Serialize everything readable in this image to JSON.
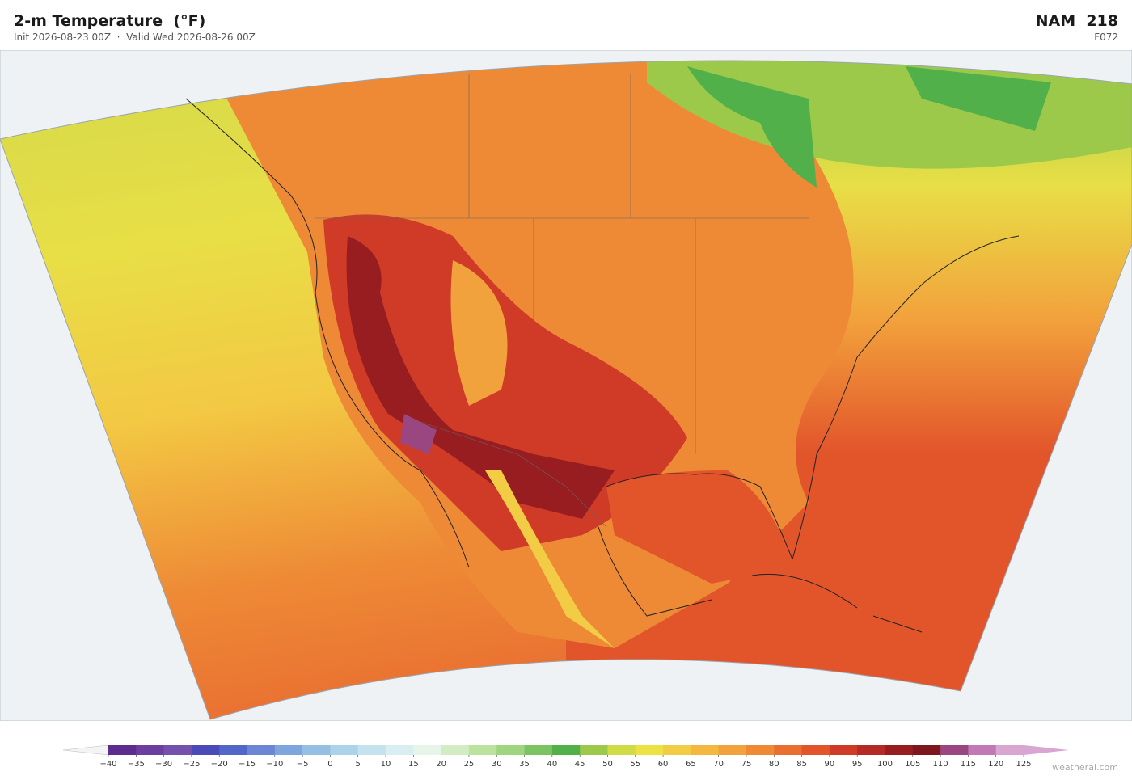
{
  "header": {
    "title": "2-m Temperature  (°F)",
    "subtitle": "Init 2026-08-23 00Z  ·  Valid Wed 2026-08-26 00Z",
    "model": "NAM  218",
    "forecast_hour": "F072"
  },
  "colorbar": {
    "ticks": [
      {
        "value": -40,
        "label": "−40"
      },
      {
        "value": -35,
        "label": "−35"
      },
      {
        "value": -30,
        "label": "−30"
      },
      {
        "value": -25,
        "label": "−25"
      },
      {
        "value": -20,
        "label": "−20"
      },
      {
        "value": -15,
        "label": "−15"
      },
      {
        "value": -10,
        "label": "−10"
      },
      {
        "value": -5,
        "label": "−5"
      },
      0,
      5,
      10,
      15,
      20,
      25,
      30,
      35,
      40,
      45,
      50,
      55,
      60,
      65,
      70,
      75,
      80,
      85,
      90,
      95,
      100,
      105,
      110,
      115,
      120,
      125
    ],
    "colors": [
      "#5c2d8e",
      "#6b3fa0",
      "#7451ad",
      "#4a4bb8",
      "#5166c8",
      "#6a86d4",
      "#7ea5dc",
      "#95c0e3",
      "#abd3ea",
      "#c4e3ef",
      "#d8eef2",
      "#e6f4ea",
      "#d2ecc4",
      "#bce39d",
      "#9fd57f",
      "#7cc462",
      "#52b04a",
      "#9dc94a",
      "#cfdc45",
      "#ece243",
      "#f2cc45",
      "#f4b841",
      "#f2a23c",
      "#ee8a36",
      "#e96f31",
      "#e2552b",
      "#cf3b27",
      "#b42a24",
      "#971d21",
      "#7d161d",
      "#9a4680",
      "#c278b4",
      "#d9a6d2"
    ],
    "under_color": "#f4f4f4",
    "over_color": "#d9a6d2"
  },
  "footer": {
    "credit": "weatherai.com"
  }
}
